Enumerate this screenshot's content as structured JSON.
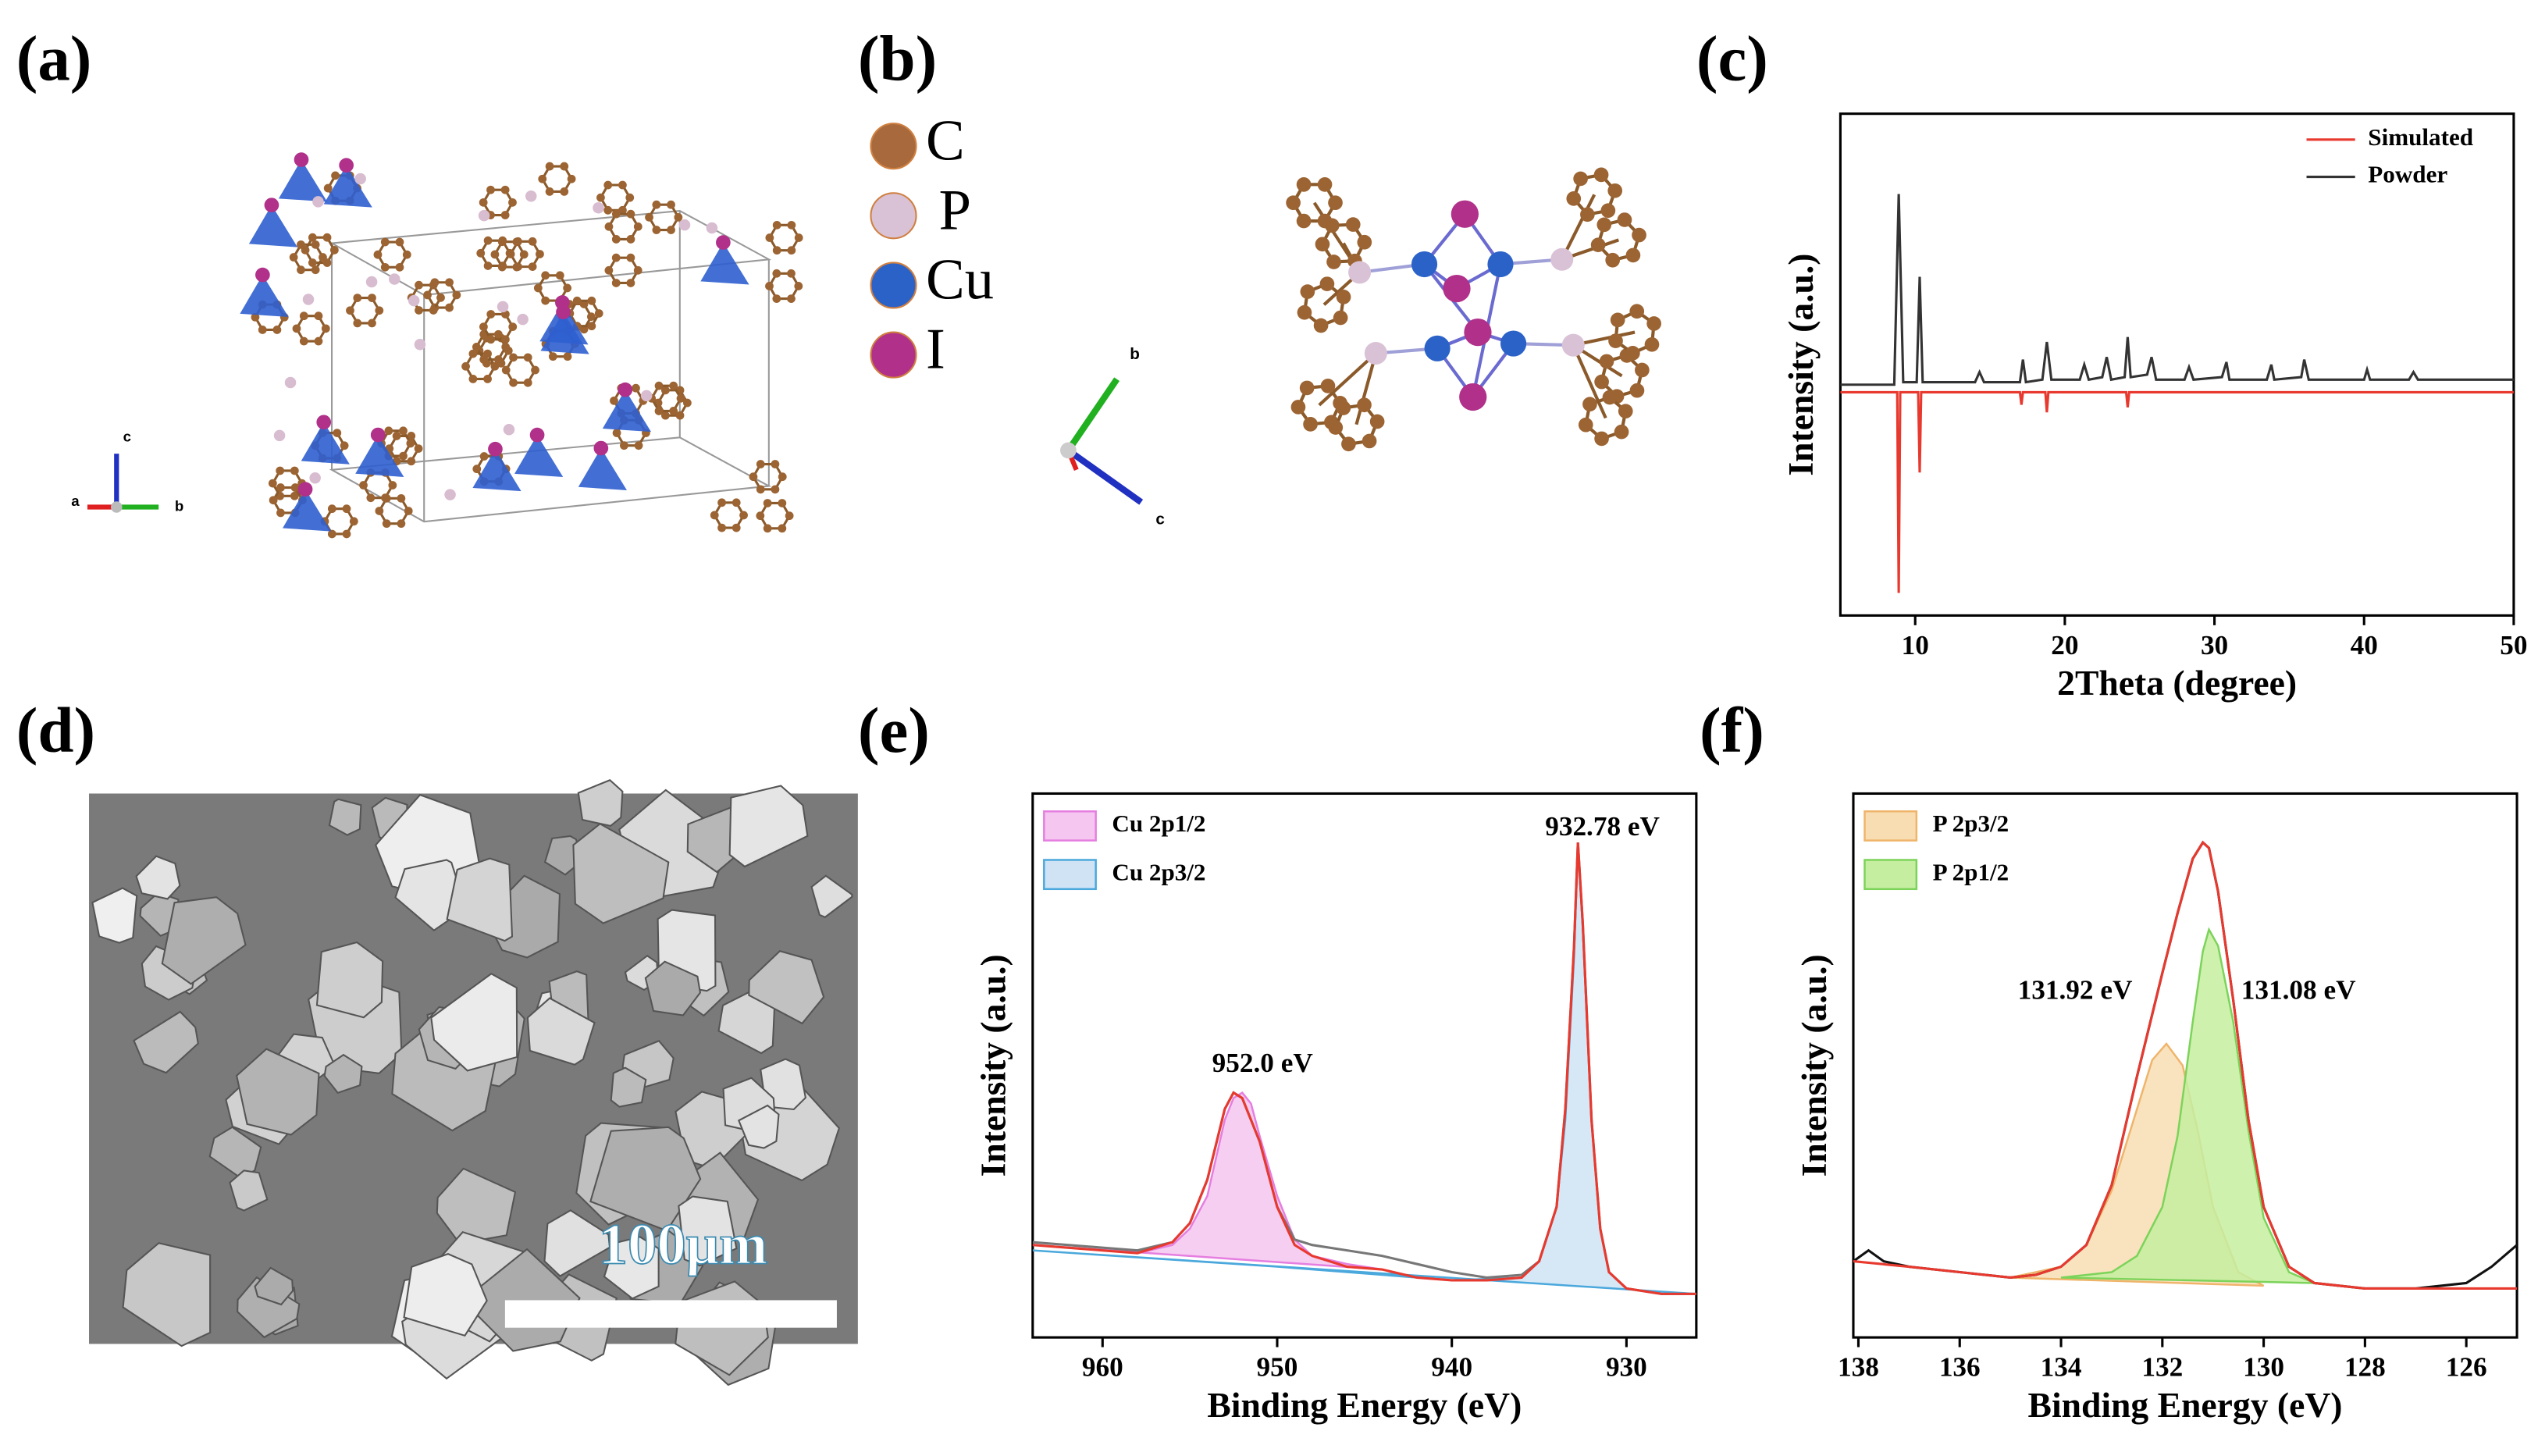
{
  "panels": {
    "a": {
      "label": "(a)",
      "axes": [
        "a",
        "b",
        "c"
      ]
    },
    "b": {
      "label": "(b)",
      "legend": [
        "C",
        "P",
        "Cu",
        "I"
      ],
      "axes": [
        "b",
        "c"
      ]
    },
    "c": {
      "label": "(c)"
    },
    "d": {
      "label": "(d)",
      "scale_bar": "100μm"
    },
    "e": {
      "label": "(e)"
    },
    "f": {
      "label": "(f)"
    }
  },
  "chart_data": [
    {
      "type": "line",
      "xlabel": "2Theta (degree)",
      "ylabel": "Intensity (a.u.)",
      "xlim": [
        5,
        50
      ],
      "xticks": [
        10,
        20,
        30,
        40,
        50
      ],
      "ylim": [
        -100,
        100
      ],
      "series": [
        {
          "name": "Simulated",
          "color": "#e8392f",
          "kind": "line",
          "x": [
            5,
            8.8,
            8.9,
            9.0,
            10.2,
            10.3,
            10.4,
            17,
            17.1,
            17.2,
            18.7,
            18.8,
            18.9,
            24.1,
            24.2,
            24.3,
            50
          ],
          "values": [
            -11,
            -11,
            -91,
            -11,
            -11,
            -43,
            -11,
            -11,
            -16,
            -11,
            -11,
            -19,
            -11,
            -11,
            -17,
            -11,
            -11
          ]
        },
        {
          "name": "Powder",
          "color": "#333333",
          "kind": "line",
          "x": [
            5,
            8.6,
            8.9,
            9.2,
            10.1,
            10.3,
            10.5,
            14,
            14.3,
            14.6,
            17,
            17.2,
            17.4,
            18.5,
            18.8,
            19.1,
            21,
            21.3,
            21.6,
            22.5,
            22.8,
            23.1,
            24,
            24.2,
            24.4,
            25.5,
            25.8,
            26.1,
            28,
            28.3,
            28.6,
            30.5,
            30.8,
            31,
            33.5,
            33.8,
            34,
            35.8,
            36,
            36.3,
            40,
            40.2,
            40.4,
            43,
            43.3,
            43.6,
            50
          ],
          "values": [
            -8,
            -8,
            68,
            -7,
            -7,
            35,
            -7,
            -7,
            -3,
            -7,
            -7,
            2,
            -7,
            -6,
            9,
            -6,
            -6,
            0,
            -6,
            -5,
            3,
            -6,
            -5,
            11,
            -5,
            -4,
            3,
            -6,
            -6,
            -1,
            -6,
            -5,
            1,
            -6,
            -6,
            0,
            -6,
            -5,
            2,
            -6,
            -6,
            -2,
            -6,
            -6,
            -3,
            -6,
            -6
          ]
        }
      ]
    },
    {
      "type": "line",
      "xlabel": "Binding Energy (eV)",
      "ylabel": "Intensity (a.u.)",
      "xlim": [
        964,
        926
      ],
      "xticks": [
        960,
        950,
        940,
        930
      ],
      "ylim": [
        0,
        100
      ],
      "annotations": [
        "932.78 eV",
        "952.0 eV"
      ],
      "series": [
        {
          "name": "Cu 2p1/2",
          "color": "#f5c6ef",
          "stroke": "#e57ee0",
          "kind": "area",
          "x": [
            964,
            958,
            956,
            955,
            954,
            953.5,
            953,
            952.5,
            952,
            951.5,
            951,
            950,
            949,
            948,
            946,
            944
          ],
          "values": [
            17,
            15.5,
            17,
            20,
            26,
            33,
            40,
            44,
            45,
            43,
            37,
            26,
            18,
            15,
            13.5,
            12.5
          ]
        },
        {
          "name": "Cu 2p3/2",
          "color": "#cfe3f5",
          "stroke": "#4aa8dc",
          "kind": "area",
          "x": [
            964,
            950,
            940,
            936,
            935,
            934,
            933.5,
            933,
            932.78,
            932.5,
            932,
            931.5,
            931,
            930,
            928,
            926
          ],
          "values": [
            16,
            13,
            10.5,
            11,
            14,
            24,
            40,
            70,
            91,
            75,
            40,
            20,
            12,
            9,
            8,
            8
          ]
        },
        {
          "color": "#777777",
          "kind": "line",
          "x": [
            964,
            960,
            958,
            956,
            955,
            954,
            953,
            952.5,
            952,
            951,
            950,
            949,
            948,
            946,
            944,
            942,
            940,
            938,
            936,
            935,
            934,
            933.5,
            933,
            932.78,
            932.5,
            932,
            931.5,
            931,
            930,
            928,
            926
          ],
          "values": [
            17.5,
            16.5,
            16,
            17.5,
            21,
            29,
            42,
            45,
            44,
            36,
            24,
            18,
            17,
            16,
            15,
            13.5,
            12,
            11,
            11.5,
            14,
            24,
            42,
            72,
            91,
            76,
            40,
            20,
            12,
            9,
            8,
            8
          ]
        },
        {
          "color": "#e8392f",
          "kind": "line",
          "x": [
            964,
            960,
            958,
            956,
            955,
            954,
            953,
            952.5,
            952,
            951,
            950,
            949,
            948,
            946,
            944,
            942,
            940,
            938,
            936,
            935,
            934,
            933.5,
            933,
            932.78,
            932.5,
            932,
            931.5,
            931,
            930,
            928,
            926
          ],
          "values": [
            17,
            16,
            15.5,
            17.5,
            21,
            29,
            42,
            45,
            44,
            36,
            24,
            17,
            15,
            13,
            12.5,
            11,
            10.5,
            10.5,
            11,
            14,
            24,
            42,
            72,
            91,
            76,
            40,
            20,
            12,
            9,
            8,
            8
          ]
        }
      ]
    },
    {
      "type": "line",
      "xlabel": "Binding Energy (eV)",
      "ylabel": "Intensity (a.u.)",
      "xlim": [
        138.1,
        125
      ],
      "xticks": [
        138,
        136,
        134,
        132,
        130,
        128,
        126
      ],
      "ylim": [
        0,
        100
      ],
      "annotations": [
        "131.92 eV",
        "131.08 eV"
      ],
      "series": [
        {
          "name": "P 2p3/2",
          "color": "#f8ddb3",
          "stroke": "#efb46a",
          "kind": "area",
          "x": [
            135,
            134,
            133.5,
            133,
            132.5,
            132.2,
            131.92,
            131.6,
            131.3,
            131,
            130.5,
            130
          ],
          "values": [
            11,
            13,
            17,
            27,
            42,
            51,
            54,
            50,
            38,
            24,
            12,
            9.5
          ]
        },
        {
          "name": "P 2p1/2",
          "color": "#c6eea0",
          "stroke": "#7cd35a",
          "kind": "area",
          "x": [
            134,
            133,
            132.5,
            132,
            131.7,
            131.4,
            131.2,
            131.08,
            130.9,
            130.6,
            130.3,
            130,
            129.5,
            129
          ],
          "values": [
            11,
            12,
            15,
            24,
            37,
            58,
            71,
            75,
            72,
            58,
            38,
            22,
            12,
            10
          ]
        },
        {
          "color": "#111111",
          "kind": "line",
          "x": [
            138.1,
            137.8,
            137.5,
            137,
            136,
            135,
            134.5,
            134,
            133.5,
            133,
            132.5,
            132,
            131.7,
            131.4,
            131.2,
            131.08,
            130.9,
            130.6,
            130.3,
            130,
            129.5,
            129,
            128,
            127,
            126,
            125.5,
            125
          ],
          "values": [
            14,
            16,
            14,
            13,
            12,
            11,
            11.5,
            13,
            17,
            28,
            48,
            67,
            78,
            88,
            91,
            90,
            82,
            62,
            40,
            24,
            13,
            10,
            9,
            9,
            10,
            13,
            17
          ]
        },
        {
          "color": "#e8392f",
          "kind": "line",
          "x": [
            138.1,
            137,
            136,
            135,
            134.5,
            134,
            133.5,
            133,
            132.5,
            132,
            131.7,
            131.4,
            131.2,
            131.08,
            130.9,
            130.6,
            130.3,
            130,
            129.5,
            129,
            128,
            127,
            126,
            125
          ],
          "values": [
            14,
            13,
            12,
            11,
            11.5,
            13,
            17,
            28,
            48,
            67,
            78,
            88,
            91,
            90,
            82,
            62,
            40,
            24,
            13,
            10,
            9,
            9,
            9,
            9
          ]
        }
      ]
    }
  ]
}
